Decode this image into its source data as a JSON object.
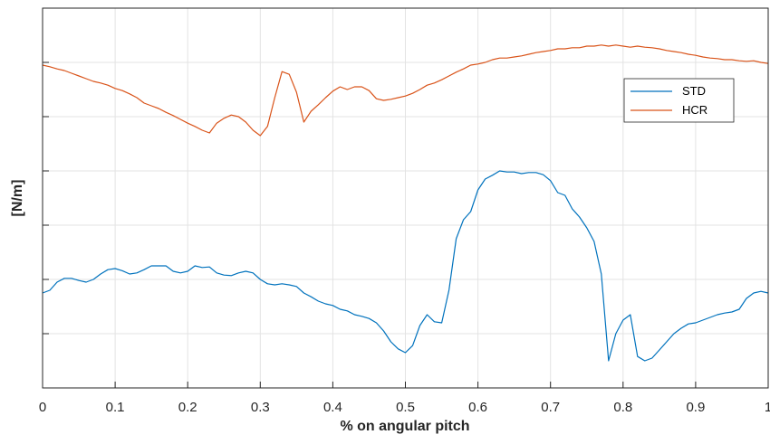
{
  "chart_data": {
    "type": "line",
    "title": "",
    "xlabel": "% on angular pitch",
    "ylabel": "[N/m]",
    "xlim": [
      0,
      1
    ],
    "ylim": [
      0,
      7
    ],
    "x_ticks": [
      0,
      0.1,
      0.2,
      0.3,
      0.4,
      0.5,
      0.6,
      0.7,
      0.8,
      0.9,
      1
    ],
    "x_tick_labels": [
      "0",
      "0.1",
      "0.2",
      "0.3",
      "0.4",
      "0.5",
      "0.6",
      "0.7",
      "0.8",
      "0.9",
      "1"
    ],
    "y_ticks": [
      1,
      2,
      3,
      4,
      5,
      6
    ],
    "y_tick_labels_shown": false,
    "grid": true,
    "legend_position": "top-right",
    "series": [
      {
        "name": "STD",
        "color": "#0072BD",
        "x": [
          0,
          0.01,
          0.02,
          0.03,
          0.04,
          0.05,
          0.06,
          0.07,
          0.08,
          0.09,
          0.1,
          0.11,
          0.12,
          0.13,
          0.14,
          0.15,
          0.16,
          0.17,
          0.18,
          0.19,
          0.2,
          0.21,
          0.22,
          0.23,
          0.24,
          0.25,
          0.26,
          0.27,
          0.28,
          0.29,
          0.3,
          0.31,
          0.32,
          0.33,
          0.34,
          0.35,
          0.36,
          0.37,
          0.38,
          0.39,
          0.4,
          0.41,
          0.42,
          0.43,
          0.44,
          0.45,
          0.46,
          0.47,
          0.48,
          0.49,
          0.5,
          0.51,
          0.52,
          0.53,
          0.54,
          0.55,
          0.56,
          0.57,
          0.58,
          0.59,
          0.6,
          0.61,
          0.62,
          0.63,
          0.64,
          0.65,
          0.66,
          0.67,
          0.68,
          0.69,
          0.7,
          0.71,
          0.72,
          0.73,
          0.74,
          0.75,
          0.76,
          0.77,
          0.78,
          0.79,
          0.8,
          0.81,
          0.82,
          0.83,
          0.84,
          0.85,
          0.86,
          0.87,
          0.88,
          0.89,
          0.9,
          0.91,
          0.92,
          0.93,
          0.94,
          0.95,
          0.96,
          0.97,
          0.98,
          0.99,
          1.0
        ],
        "y": [
          1.75,
          1.8,
          1.95,
          2.02,
          2.02,
          1.98,
          1.95,
          2.0,
          2.1,
          2.18,
          2.2,
          2.16,
          2.1,
          2.12,
          2.18,
          2.25,
          2.25,
          2.25,
          2.15,
          2.12,
          2.15,
          2.25,
          2.22,
          2.23,
          2.12,
          2.08,
          2.07,
          2.12,
          2.15,
          2.12,
          2.0,
          1.92,
          1.9,
          1.92,
          1.9,
          1.87,
          1.75,
          1.68,
          1.6,
          1.55,
          1.52,
          1.45,
          1.42,
          1.35,
          1.32,
          1.28,
          1.2,
          1.05,
          0.85,
          0.72,
          0.65,
          0.78,
          1.15,
          1.35,
          1.22,
          1.2,
          1.8,
          2.75,
          3.1,
          3.25,
          3.65,
          3.85,
          3.92,
          4.0,
          3.98,
          3.98,
          3.95,
          3.97,
          3.97,
          3.93,
          3.82,
          3.6,
          3.55,
          3.3,
          3.15,
          2.95,
          2.7,
          2.1,
          0.5,
          1.0,
          1.25,
          1.35,
          0.58,
          0.5,
          0.55,
          0.7,
          0.85,
          1.0,
          1.1,
          1.18,
          1.2,
          1.25,
          1.3,
          1.35,
          1.38,
          1.4,
          1.45,
          1.65,
          1.75,
          1.78,
          1.75
        ]
      },
      {
        "name": "HCR",
        "color": "#D95319",
        "x": [
          0,
          0.01,
          0.02,
          0.03,
          0.04,
          0.05,
          0.06,
          0.07,
          0.08,
          0.09,
          0.1,
          0.11,
          0.12,
          0.13,
          0.14,
          0.15,
          0.16,
          0.17,
          0.18,
          0.19,
          0.2,
          0.21,
          0.22,
          0.23,
          0.24,
          0.25,
          0.26,
          0.27,
          0.28,
          0.29,
          0.3,
          0.31,
          0.32,
          0.33,
          0.34,
          0.35,
          0.36,
          0.37,
          0.38,
          0.39,
          0.4,
          0.41,
          0.42,
          0.43,
          0.44,
          0.45,
          0.46,
          0.47,
          0.48,
          0.49,
          0.5,
          0.51,
          0.52,
          0.53,
          0.54,
          0.55,
          0.56,
          0.57,
          0.58,
          0.59,
          0.6,
          0.61,
          0.62,
          0.63,
          0.64,
          0.65,
          0.66,
          0.67,
          0.68,
          0.69,
          0.7,
          0.71,
          0.72,
          0.73,
          0.74,
          0.75,
          0.76,
          0.77,
          0.78,
          0.79,
          0.8,
          0.81,
          0.82,
          0.83,
          0.84,
          0.85,
          0.86,
          0.87,
          0.88,
          0.89,
          0.9,
          0.91,
          0.92,
          0.93,
          0.94,
          0.95,
          0.96,
          0.97,
          0.98,
          0.99,
          1.0
        ],
        "y": [
          5.95,
          5.92,
          5.88,
          5.85,
          5.8,
          5.75,
          5.7,
          5.65,
          5.62,
          5.58,
          5.52,
          5.48,
          5.42,
          5.35,
          5.25,
          5.2,
          5.15,
          5.08,
          5.02,
          4.95,
          4.88,
          4.82,
          4.75,
          4.7,
          4.88,
          4.97,
          5.03,
          5.0,
          4.9,
          4.75,
          4.65,
          4.82,
          5.35,
          5.83,
          5.78,
          5.45,
          4.9,
          5.1,
          5.22,
          5.35,
          5.47,
          5.55,
          5.5,
          5.55,
          5.55,
          5.48,
          5.33,
          5.3,
          5.32,
          5.35,
          5.38,
          5.43,
          5.5,
          5.58,
          5.62,
          5.68,
          5.75,
          5.82,
          5.88,
          5.95,
          5.97,
          6.0,
          6.05,
          6.08,
          6.08,
          6.1,
          6.12,
          6.15,
          6.18,
          6.2,
          6.22,
          6.25,
          6.25,
          6.27,
          6.27,
          6.3,
          6.3,
          6.32,
          6.3,
          6.32,
          6.3,
          6.28,
          6.3,
          6.28,
          6.27,
          6.25,
          6.22,
          6.2,
          6.18,
          6.15,
          6.13,
          6.1,
          6.08,
          6.07,
          6.05,
          6.05,
          6.03,
          6.02,
          6.03,
          6.0,
          5.98
        ]
      }
    ]
  }
}
